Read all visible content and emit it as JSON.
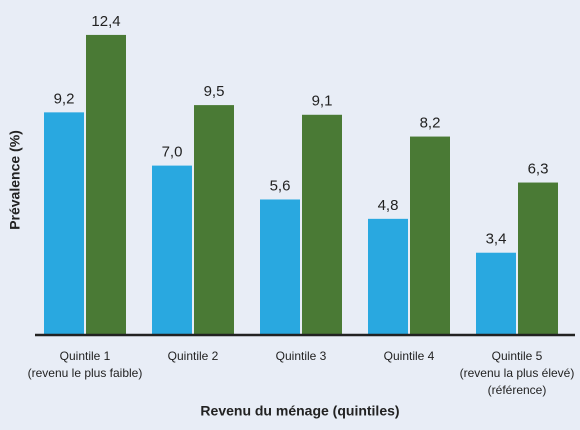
{
  "chart_data": {
    "type": "bar",
    "x_label": "Revenu du ménage (quintiles)",
    "y_label": "Prévalence (%)",
    "categories": [
      [
        "Quintile 1",
        "(revenu le plus faible)"
      ],
      [
        "Quintile 2"
      ],
      [
        "Quintile 3"
      ],
      [
        "Quintile 4"
      ],
      [
        "Quintile 5",
        "(revenu la plus élevé)",
        "(référence)"
      ]
    ],
    "series": [
      {
        "color": "#29a8e0",
        "values": [
          9.2,
          7.0,
          5.6,
          4.8,
          3.4
        ],
        "value_labels": [
          "9,2",
          "7,0",
          "5,6",
          "4,8",
          "3,4"
        ]
      },
      {
        "color": "#4a7a35",
        "values": [
          12.4,
          9.5,
          9.1,
          8.2,
          6.3
        ],
        "value_labels": [
          "12,4",
          "9,5",
          "9,1",
          "8,2",
          "6,3"
        ]
      }
    ],
    "ylim": [
      0,
      12.5
    ]
  }
}
